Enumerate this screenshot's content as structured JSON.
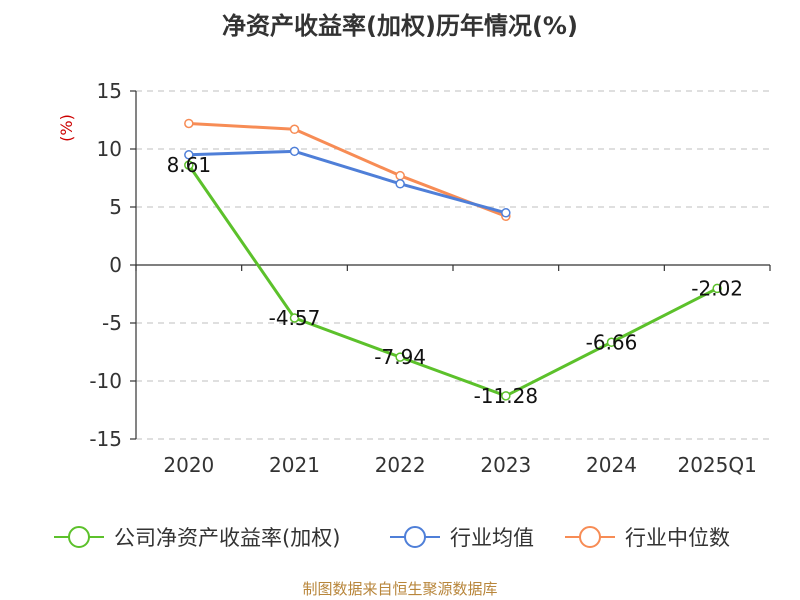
{
  "chart_data": {
    "type": "line",
    "title": "净资产收益率(加权)历年情况(%)",
    "ylabel": "(%)",
    "xlabel": "",
    "categories": [
      "2020",
      "2021",
      "2022",
      "2023",
      "2024",
      "2025Q1"
    ],
    "ylim": [
      -15,
      15
    ],
    "yticks": [
      15,
      10,
      5,
      0,
      -5,
      -10,
      -15
    ],
    "grid": true,
    "legend_position": "bottom",
    "series": [
      {
        "name": "公司净资产收益率(加权)",
        "color": "#5cc12b",
        "values": [
          8.61,
          -4.57,
          -7.94,
          -11.28,
          -6.66,
          -2.02
        ],
        "labels": [
          "8.61",
          "-4.57",
          "-7.94",
          "-11.28",
          "-6.66",
          "-2.02"
        ]
      },
      {
        "name": "行业均值",
        "color": "#4f7fd8",
        "values": [
          9.5,
          9.8,
          7.0,
          4.5,
          null,
          null
        ]
      },
      {
        "name": "行业中位数",
        "color": "#f78c55",
        "values": [
          12.2,
          11.7,
          7.7,
          4.2,
          null,
          null
        ]
      }
    ],
    "source": "制图数据来自恒生聚源数据库"
  }
}
